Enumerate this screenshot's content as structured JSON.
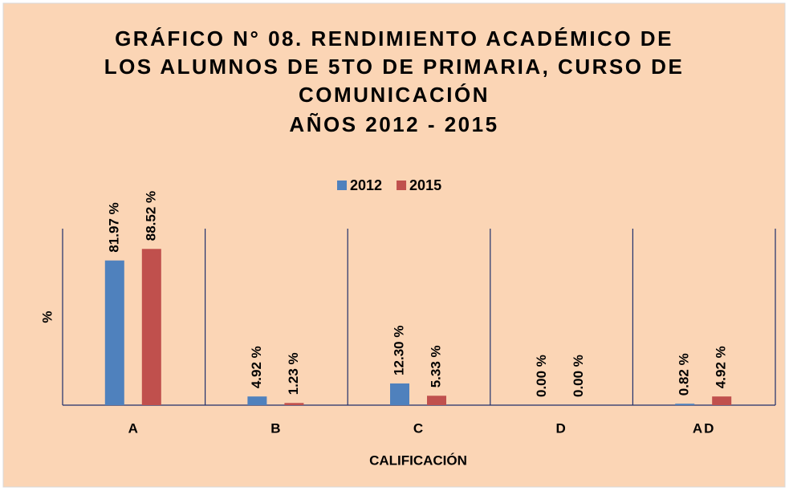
{
  "chart_data": {
    "type": "bar",
    "title_lines": [
      "GRÁFICO N° 08. RENDIMIENTO ACADÉMICO DE",
      "LOS ALUMNOS DE 5TO DE PRIMARIA, CURSO DE",
      "COMUNICACIÓN",
      "AÑOS 2012 - 2015"
    ],
    "x_label": "CALIFICACIÓN",
    "y_label": "%",
    "categories": [
      "A",
      "B",
      "C",
      "D",
      "AD"
    ],
    "series": [
      {
        "name": "2012",
        "color": "#4f81bd",
        "values": [
          81.97,
          4.92,
          12.3,
          0.0,
          0.82
        ],
        "value_labels": [
          "81.97 %",
          "4.92 %",
          "12.30 %",
          "0.00 %",
          "0.82 %"
        ]
      },
      {
        "name": "2015",
        "color": "#c0504d",
        "values": [
          88.52,
          1.23,
          5.33,
          0.0,
          4.92
        ],
        "value_labels": [
          "88.52 %",
          "1.23 %",
          "5.33 %",
          "0.00 %",
          "4.92 %"
        ]
      }
    ],
    "ylim": [
      0,
      100
    ],
    "legend": "top"
  }
}
